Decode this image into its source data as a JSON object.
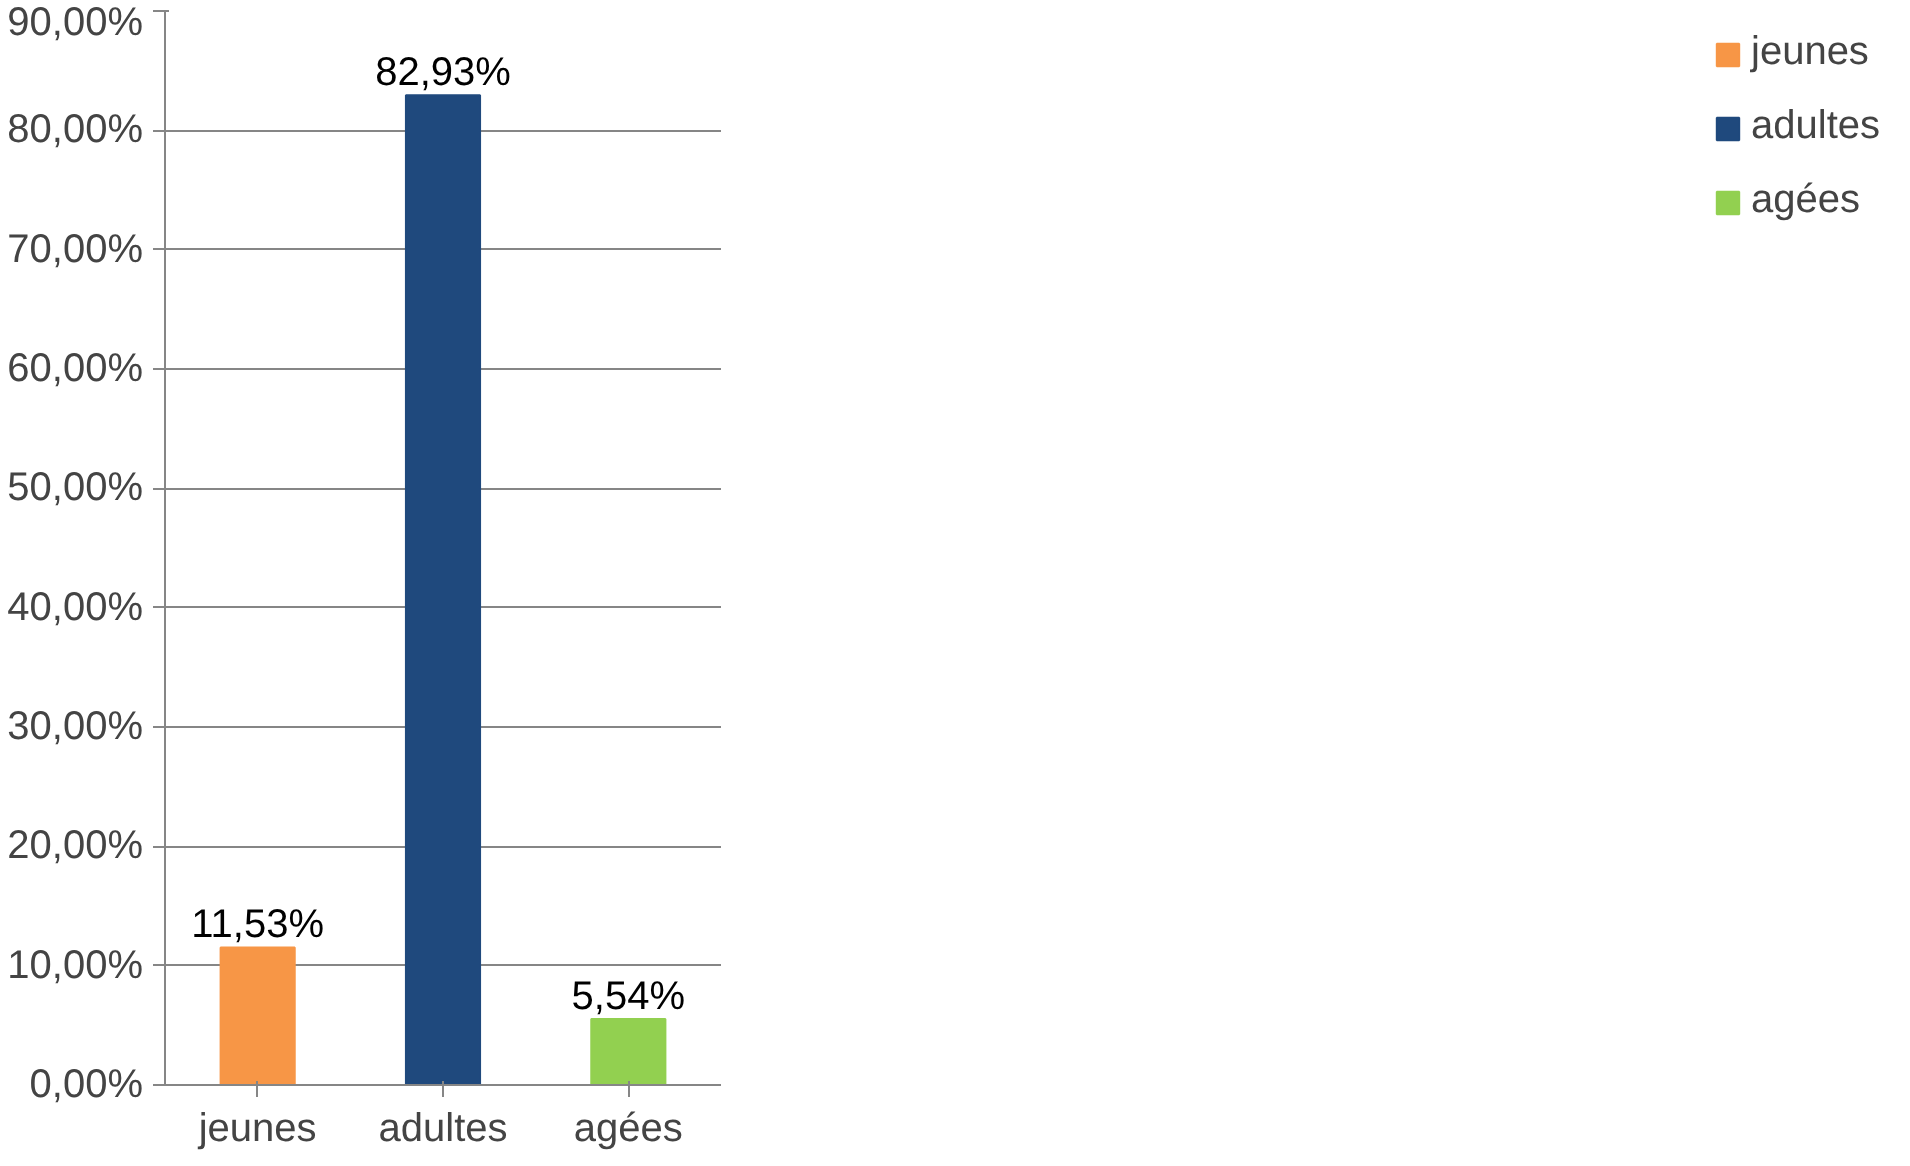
{
  "chart_data": {
    "type": "bar",
    "categories": [
      "jeunes",
      "adultes",
      "agées"
    ],
    "series": [
      {
        "name": "jeunes",
        "color": "#f79646",
        "values": [
          11.53,
          null,
          null
        ],
        "value_labels": [
          "11,53%",
          null,
          null
        ]
      },
      {
        "name": "adultes",
        "color": "#1f497d",
        "values": [
          null,
          82.93,
          null
        ],
        "value_labels": [
          null,
          "82,93%",
          null
        ]
      },
      {
        "name": "agées",
        "color": "#92d050",
        "values": [
          null,
          null,
          5.54
        ],
        "value_labels": [
          null,
          null,
          "5,54%"
        ]
      }
    ],
    "ylim": [
      0,
      90
    ],
    "yticks": [
      {
        "value": 0,
        "label": "0,00%"
      },
      {
        "value": 10,
        "label": "10,00%"
      },
      {
        "value": 20,
        "label": "20,00%"
      },
      {
        "value": 30,
        "label": "30,00%"
      },
      {
        "value": 40,
        "label": "40,00%"
      },
      {
        "value": 50,
        "label": "50,00%"
      },
      {
        "value": 60,
        "label": "60,00%"
      },
      {
        "value": 70,
        "label": "70,00%"
      },
      {
        "value": 80,
        "label": "80,00%"
      },
      {
        "value": 90,
        "label": "90,00%"
      }
    ],
    "grid": "y",
    "legend": "right"
  }
}
